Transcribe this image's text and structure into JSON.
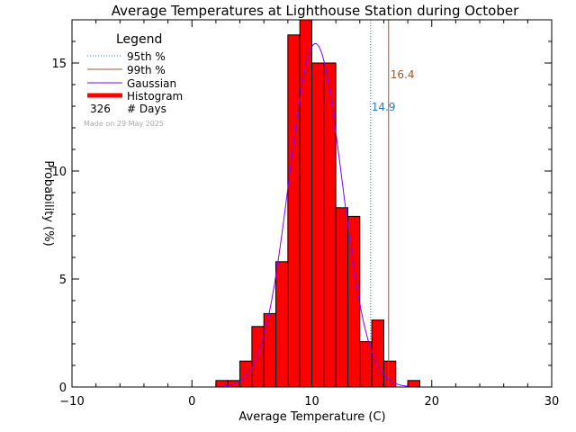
{
  "chart_data": {
    "type": "bar",
    "title": "Average Temperatures at Lighthouse Station during October",
    "xlabel": "Average Temperature (C)",
    "ylabel": "Probability  (%)",
    "xlim": [
      -10,
      30
    ],
    "ylim": [
      0,
      17
    ],
    "x_ticks": [
      -10,
      0,
      10,
      20,
      30
    ],
    "y_ticks": [
      0,
      5,
      10,
      15
    ],
    "x_tick_labels": [
      "−10",
      "0",
      "10",
      "20",
      "30"
    ],
    "y_tick_labels": [
      "0",
      "5",
      "10",
      "15"
    ],
    "bin_width": 1,
    "histogram": {
      "bin_starts": [
        2,
        3,
        4,
        5,
        6,
        7,
        8,
        9,
        10,
        11,
        12,
        13,
        14,
        15,
        16,
        17,
        18
      ],
      "values": [
        0.3,
        0.3,
        1.2,
        2.8,
        3.4,
        5.8,
        16.3,
        17.0,
        15.0,
        15.0,
        8.3,
        7.9,
        2.1,
        3.1,
        1.2,
        0,
        0.3
      ],
      "color": "#ff0000"
    },
    "gaussian": {
      "mean": 10.3,
      "sigma": 2.2,
      "peak": 15.9,
      "color": "#7f00ff"
    },
    "percentiles": [
      {
        "label": "14.9",
        "value": 14.9,
        "color": "#1a7fd4"
      },
      {
        "label": "16.4",
        "value": 16.4,
        "color": "#a0522d"
      }
    ],
    "legend": {
      "title": "Legend",
      "position": "top-left",
      "entries": [
        {
          "label": "95th %",
          "style": "dotted",
          "color": "#1a7fd4"
        },
        {
          "label": "99th %",
          "style": "solid",
          "color": "#a0522d"
        },
        {
          "label": "Gaussian",
          "style": "solid",
          "color": "#7f00ff"
        },
        {
          "label": "Histogram",
          "style": "thick",
          "color": "#ff0000"
        }
      ],
      "days_count": "326",
      "days_label": "# Days",
      "made_on": "Made on 29 May 2025"
    }
  }
}
